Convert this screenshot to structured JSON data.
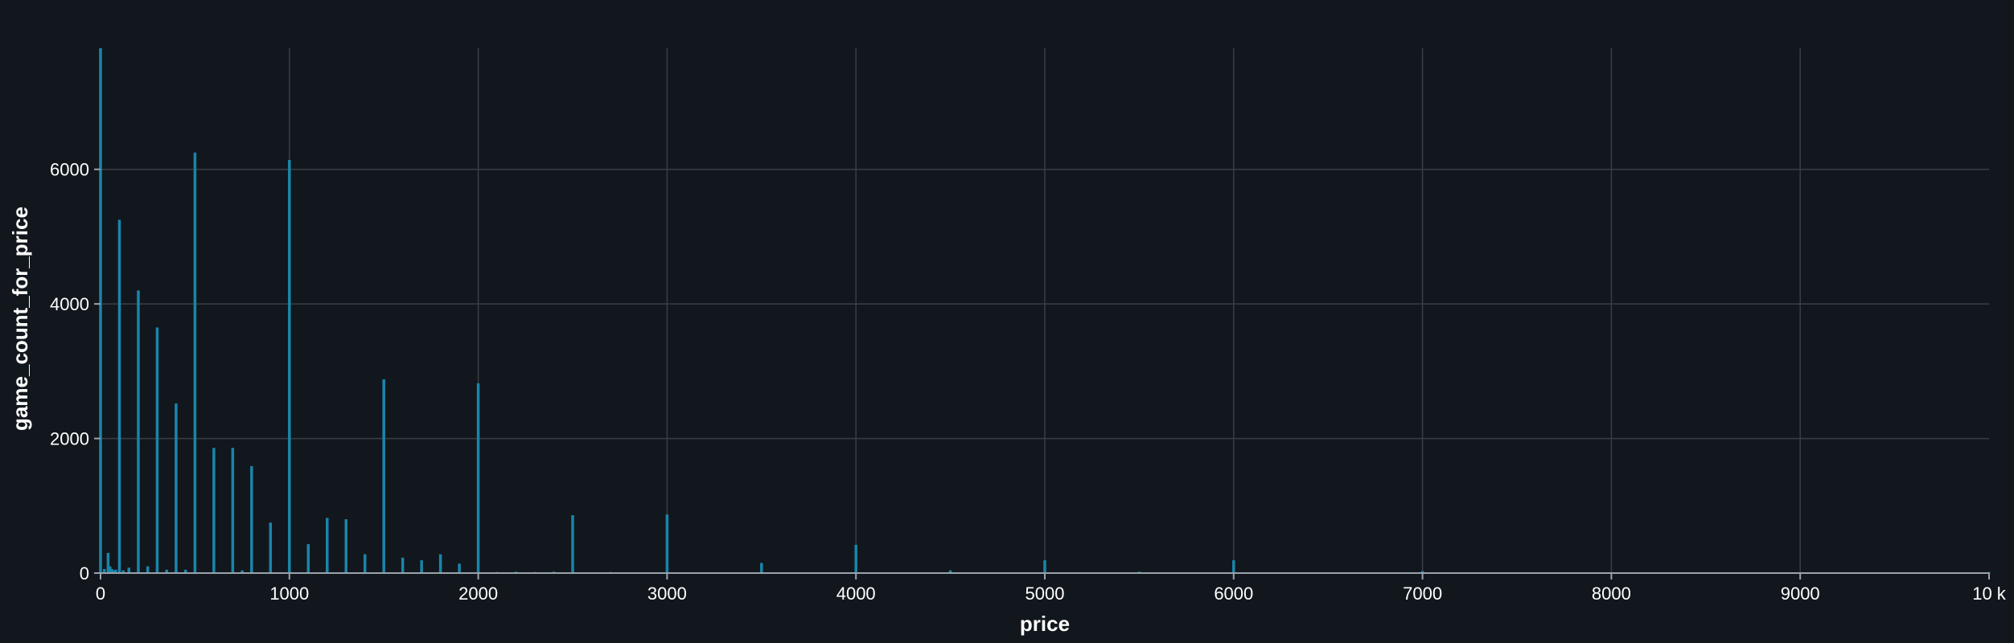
{
  "chart_data": {
    "type": "bar",
    "title": "",
    "xlabel": "price",
    "ylabel": "game_count_for_price",
    "xlim": [
      0,
      10000
    ],
    "ylim": [
      0,
      7800
    ],
    "grid": true,
    "bar_color": "#1a85aa",
    "background_color": "#12171d",
    "x_ticks": [
      0,
      1000,
      2000,
      3000,
      4000,
      5000,
      6000,
      7000,
      8000,
      9000,
      10000
    ],
    "x_tick_labels": [
      "0",
      "1000",
      "2000",
      "3000",
      "4000",
      "5000",
      "6000",
      "7000",
      "8000",
      "9000",
      "10 k"
    ],
    "y_ticks": [
      0,
      2000,
      4000,
      6000
    ],
    "y_tick_labels": [
      "0",
      "2000",
      "4000",
      "6000"
    ],
    "series": [
      {
        "x": [
          0,
          20,
          40,
          50,
          60,
          70,
          80,
          100,
          120,
          150,
          200,
          250,
          300,
          350,
          400,
          450,
          500,
          600,
          700,
          750,
          800,
          900,
          1000,
          1100,
          1200,
          1300,
          1400,
          1500,
          1600,
          1700,
          1800,
          1900,
          2000,
          2100,
          2200,
          2300,
          2400,
          2500,
          2700,
          3000,
          3500,
          4000,
          4500,
          5000,
          5500,
          6000,
          7000,
          10000
        ],
        "y": [
          7800,
          60,
          300,
          100,
          60,
          40,
          50,
          5250,
          40,
          80,
          4200,
          100,
          3650,
          50,
          2520,
          50,
          6250,
          1860,
          1860,
          40,
          1590,
          750,
          6140,
          430,
          820,
          800,
          280,
          2880,
          230,
          190,
          280,
          140,
          2820,
          15,
          20,
          15,
          20,
          860,
          15,
          870,
          150,
          420,
          40,
          190,
          20,
          190,
          30,
          15
        ]
      }
    ]
  }
}
